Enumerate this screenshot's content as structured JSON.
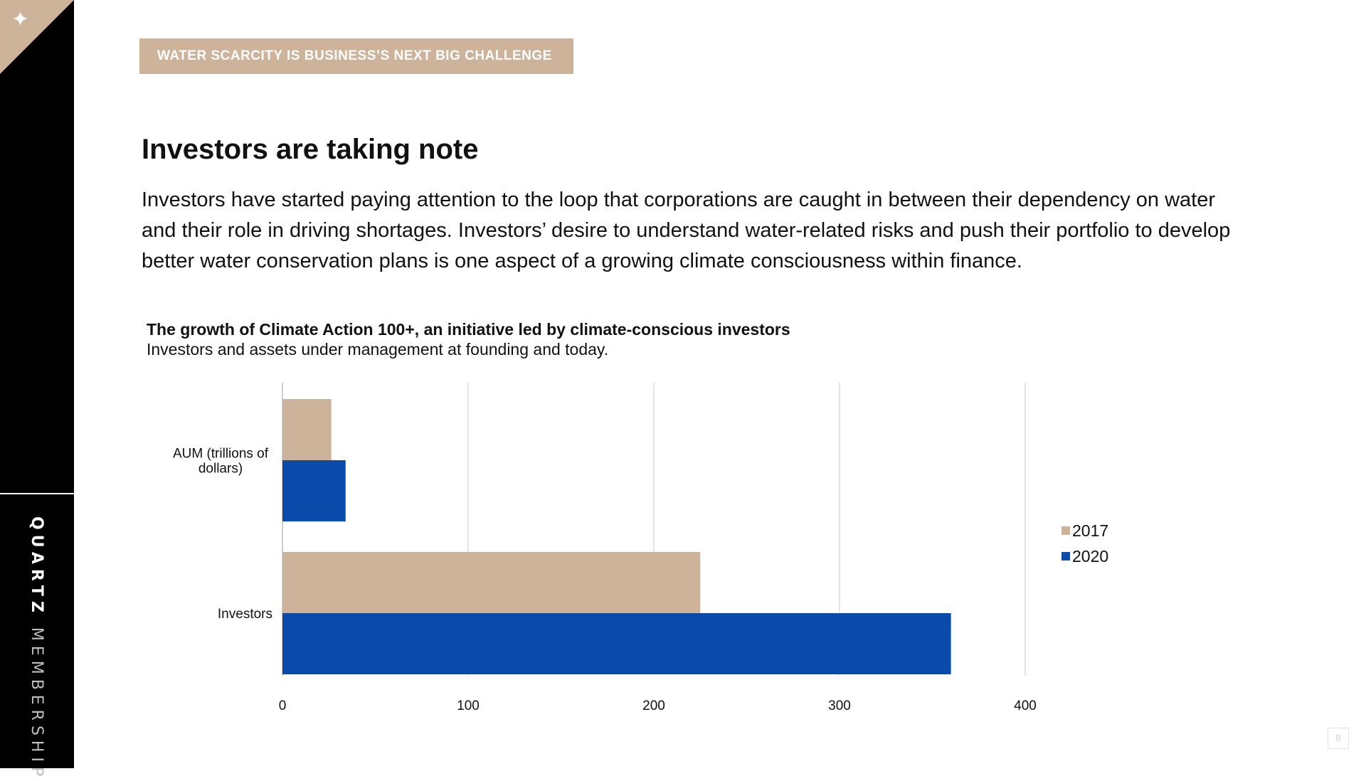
{
  "sidebar": {
    "brand_primary": "QUARTZ",
    "brand_secondary": "MEMBERSHIP",
    "star_glyph": "✦"
  },
  "header": {
    "section_tag": "WATER SCARCITY IS BUSINESS’S NEXT BIG CHALLENGE"
  },
  "main": {
    "headline": "Investors are taking note",
    "body": "Investors have started paying attention to the loop that corporations are caught in between their dependency on water and their role in driving shortages. Investors’ desire to understand water-related risks and push their portfolio to develop better water conservation plans is one aspect of a growing climate consciousness within finance."
  },
  "page_number": "8",
  "colors": {
    "accent": "#cdb39a",
    "series_2017": "#cdb39a",
    "series_2020": "#0a4aab",
    "sidebar": "#000000"
  },
  "chart_data": {
    "type": "bar",
    "orientation": "horizontal",
    "title": "The growth of Climate Action 100+, an initiative led by climate-conscious investors",
    "subtitle": "Investors and assets under management at founding and today.",
    "categories": [
      "AUM (trillions of dollars)",
      "Investors"
    ],
    "category_lines": [
      [
        "AUM (trillions of",
        "dollars)"
      ],
      [
        "Investors"
      ]
    ],
    "series": [
      {
        "name": "2017",
        "values": [
          26.3,
          225
        ]
      },
      {
        "name": "2020",
        "values": [
          34,
          360
        ]
      }
    ],
    "xlim": [
      0,
      400
    ],
    "xticks": [
      0,
      100,
      200,
      300,
      400
    ],
    "grid": true,
    "legend_position": "right"
  }
}
